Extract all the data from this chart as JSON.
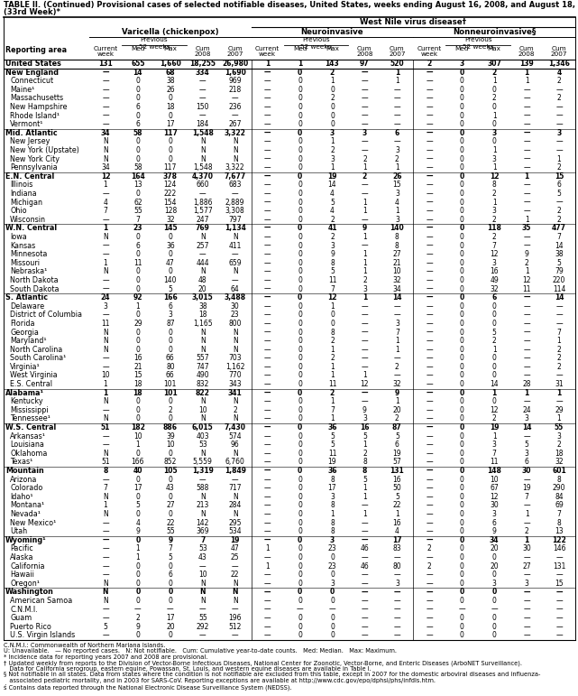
{
  "title_line1": "TABLE II. (Continued) Provisional cases of selected notifiable diseases, United States, weeks ending August 16, 2008, and August 18, 2007",
  "title_line2": "(33rd Week)*",
  "col_group1": "Varicella (chickenpox)",
  "col_group2": "Neuroinvasive",
  "col_group3": "Nonneuroinvasive§",
  "super_group": "West Nile virus disease†",
  "prev52_label": "Previous\n52 weeks",
  "reporting_area_label": "Reporting area",
  "rows": [
    [
      "United States",
      "131",
      "655",
      "1,660",
      "18,255",
      "26,980",
      "1",
      "1",
      "143",
      "97",
      "520",
      "2",
      "3",
      "307",
      "139",
      "1,346"
    ],
    [
      "New England",
      "—",
      "14",
      "68",
      "334",
      "1,690",
      "—",
      "0",
      "2",
      "—",
      "1",
      "—",
      "0",
      "2",
      "1",
      "4"
    ],
    [
      "Connecticut",
      "—",
      "0",
      "38",
      "—",
      "969",
      "—",
      "0",
      "1",
      "—",
      "1",
      "—",
      "0",
      "1",
      "1",
      "2"
    ],
    [
      "Maine¹",
      "—",
      "0",
      "26",
      "—",
      "218",
      "—",
      "0",
      "0",
      "—",
      "—",
      "—",
      "0",
      "0",
      "—",
      "—"
    ],
    [
      "Massachusetts",
      "—",
      "0",
      "0",
      "—",
      "—",
      "—",
      "0",
      "2",
      "—",
      "—",
      "—",
      "0",
      "2",
      "—",
      "2"
    ],
    [
      "New Hampshire",
      "—",
      "6",
      "18",
      "150",
      "236",
      "—",
      "0",
      "0",
      "—",
      "—",
      "—",
      "0",
      "0",
      "—",
      "—"
    ],
    [
      "Rhode Island¹",
      "—",
      "0",
      "0",
      "—",
      "—",
      "—",
      "0",
      "0",
      "—",
      "—",
      "—",
      "0",
      "1",
      "—",
      "—"
    ],
    [
      "Vermont¹",
      "—",
      "6",
      "17",
      "184",
      "267",
      "—",
      "0",
      "0",
      "—",
      "—",
      "—",
      "0",
      "0",
      "—",
      "—"
    ],
    [
      "Mid. Atlantic",
      "34",
      "58",
      "117",
      "1,548",
      "3,322",
      "—",
      "0",
      "3",
      "3",
      "6",
      "—",
      "0",
      "3",
      "—",
      "3"
    ],
    [
      "New Jersey",
      "N",
      "0",
      "0",
      "N",
      "N",
      "—",
      "0",
      "1",
      "—",
      "—",
      "—",
      "0",
      "0",
      "—",
      "—"
    ],
    [
      "New York (Upstate)",
      "N",
      "0",
      "0",
      "N",
      "N",
      "—",
      "0",
      "2",
      "—",
      "3",
      "—",
      "0",
      "1",
      "—",
      "—"
    ],
    [
      "New York City",
      "N",
      "0",
      "0",
      "N",
      "N",
      "—",
      "0",
      "3",
      "2",
      "2",
      "—",
      "0",
      "3",
      "—",
      "1"
    ],
    [
      "Pennsylvania",
      "34",
      "58",
      "117",
      "1,548",
      "3,322",
      "—",
      "0",
      "1",
      "1",
      "1",
      "—",
      "0",
      "1",
      "—",
      "2"
    ],
    [
      "E.N. Central",
      "12",
      "164",
      "378",
      "4,370",
      "7,677",
      "—",
      "0",
      "19",
      "2",
      "26",
      "—",
      "0",
      "12",
      "1",
      "15"
    ],
    [
      "Illinois",
      "1",
      "13",
      "124",
      "660",
      "683",
      "—",
      "0",
      "14",
      "—",
      "15",
      "—",
      "0",
      "8",
      "—",
      "6"
    ],
    [
      "Indiana",
      "—",
      "0",
      "222",
      "—",
      "—",
      "—",
      "0",
      "4",
      "—",
      "3",
      "—",
      "0",
      "2",
      "—",
      "5"
    ],
    [
      "Michigan",
      "4",
      "62",
      "154",
      "1,886",
      "2,889",
      "—",
      "0",
      "5",
      "1",
      "4",
      "—",
      "0",
      "1",
      "—",
      "—"
    ],
    [
      "Ohio",
      "7",
      "55",
      "128",
      "1,577",
      "3,308",
      "—",
      "0",
      "4",
      "1",
      "1",
      "—",
      "0",
      "3",
      "—",
      "2"
    ],
    [
      "Wisconsin",
      "—",
      "7",
      "32",
      "247",
      "797",
      "—",
      "0",
      "2",
      "—",
      "3",
      "—",
      "0",
      "2",
      "1",
      "2"
    ],
    [
      "W.N. Central",
      "1",
      "23",
      "145",
      "769",
      "1,134",
      "—",
      "0",
      "41",
      "9",
      "140",
      "—",
      "0",
      "118",
      "35",
      "477"
    ],
    [
      "Iowa",
      "N",
      "0",
      "0",
      "N",
      "N",
      "—",
      "0",
      "2",
      "1",
      "8",
      "—",
      "0",
      "2",
      "—",
      "7"
    ],
    [
      "Kansas",
      "—",
      "6",
      "36",
      "257",
      "411",
      "—",
      "0",
      "3",
      "—",
      "8",
      "—",
      "0",
      "7",
      "—",
      "14"
    ],
    [
      "Minnesota",
      "—",
      "0",
      "0",
      "—",
      "—",
      "—",
      "0",
      "9",
      "1",
      "27",
      "—",
      "0",
      "12",
      "9",
      "38"
    ],
    [
      "Missouri",
      "1",
      "11",
      "47",
      "444",
      "659",
      "—",
      "0",
      "8",
      "1",
      "21",
      "—",
      "0",
      "3",
      "2",
      "5"
    ],
    [
      "Nebraska¹",
      "N",
      "0",
      "0",
      "N",
      "N",
      "—",
      "0",
      "5",
      "1",
      "10",
      "—",
      "0",
      "16",
      "1",
      "79"
    ],
    [
      "North Dakota",
      "—",
      "0",
      "140",
      "48",
      "—",
      "—",
      "0",
      "11",
      "2",
      "32",
      "—",
      "0",
      "49",
      "12",
      "220"
    ],
    [
      "South Dakota",
      "—",
      "0",
      "5",
      "20",
      "64",
      "—",
      "0",
      "7",
      "3",
      "34",
      "—",
      "0",
      "32",
      "11",
      "114"
    ],
    [
      "S. Atlantic",
      "24",
      "92",
      "166",
      "3,015",
      "3,488",
      "—",
      "0",
      "12",
      "1",
      "14",
      "—",
      "0",
      "6",
      "—",
      "14"
    ],
    [
      "Delaware",
      "3",
      "1",
      "6",
      "38",
      "30",
      "—",
      "0",
      "1",
      "—",
      "—",
      "—",
      "0",
      "0",
      "—",
      "—"
    ],
    [
      "District of Columbia",
      "—",
      "0",
      "3",
      "18",
      "23",
      "—",
      "0",
      "0",
      "—",
      "—",
      "—",
      "0",
      "0",
      "—",
      "—"
    ],
    [
      "Florida",
      "11",
      "29",
      "87",
      "1,165",
      "800",
      "—",
      "0",
      "0",
      "—",
      "3",
      "—",
      "0",
      "0",
      "—",
      "—"
    ],
    [
      "Georgia",
      "N",
      "0",
      "0",
      "N",
      "N",
      "—",
      "0",
      "8",
      "—",
      "7",
      "—",
      "0",
      "5",
      "—",
      "7"
    ],
    [
      "Maryland¹",
      "N",
      "0",
      "0",
      "N",
      "N",
      "—",
      "0",
      "2",
      "—",
      "1",
      "—",
      "0",
      "2",
      "—",
      "1"
    ],
    [
      "North Carolina",
      "N",
      "0",
      "0",
      "N",
      "N",
      "—",
      "0",
      "1",
      "—",
      "1",
      "—",
      "0",
      "1",
      "—",
      "2"
    ],
    [
      "South Carolina¹",
      "—",
      "16",
      "66",
      "557",
      "703",
      "—",
      "0",
      "2",
      "—",
      "—",
      "—",
      "0",
      "0",
      "—",
      "2"
    ],
    [
      "Virginia¹",
      "—",
      "21",
      "80",
      "747",
      "1,162",
      "—",
      "0",
      "1",
      "—",
      "2",
      "—",
      "0",
      "0",
      "—",
      "2"
    ],
    [
      "West Virginia",
      "10",
      "15",
      "66",
      "490",
      "770",
      "—",
      "0",
      "1",
      "1",
      "—",
      "—",
      "0",
      "0",
      "—",
      "—"
    ],
    [
      "E.S. Central",
      "1",
      "18",
      "101",
      "832",
      "343",
      "—",
      "0",
      "11",
      "12",
      "32",
      "—",
      "0",
      "14",
      "28",
      "31"
    ],
    [
      "Alabama¹",
      "1",
      "18",
      "101",
      "822",
      "341",
      "—",
      "0",
      "2",
      "—",
      "9",
      "—",
      "0",
      "1",
      "1",
      "1"
    ],
    [
      "Kentucky",
      "N",
      "0",
      "0",
      "N",
      "N",
      "—",
      "0",
      "1",
      "—",
      "1",
      "—",
      "0",
      "0",
      "—",
      "—"
    ],
    [
      "Mississippi",
      "—",
      "0",
      "2",
      "10",
      "2",
      "—",
      "0",
      "7",
      "9",
      "20",
      "—",
      "0",
      "12",
      "24",
      "29"
    ],
    [
      "Tennessee¹",
      "N",
      "0",
      "0",
      "N",
      "N",
      "—",
      "0",
      "1",
      "3",
      "2",
      "—",
      "0",
      "2",
      "3",
      "1"
    ],
    [
      "W.S. Central",
      "51",
      "182",
      "886",
      "6,015",
      "7,430",
      "—",
      "0",
      "36",
      "16",
      "87",
      "—",
      "0",
      "19",
      "14",
      "55"
    ],
    [
      "Arkansas¹",
      "—",
      "10",
      "39",
      "403",
      "574",
      "—",
      "0",
      "5",
      "5",
      "5",
      "—",
      "0",
      "1",
      "—",
      "3"
    ],
    [
      "Louisiana",
      "—",
      "1",
      "10",
      "53",
      "96",
      "—",
      "0",
      "5",
      "1",
      "6",
      "—",
      "0",
      "3",
      "5",
      "2"
    ],
    [
      "Oklahoma",
      "N",
      "0",
      "0",
      "N",
      "N",
      "—",
      "0",
      "11",
      "2",
      "19",
      "—",
      "0",
      "7",
      "3",
      "18"
    ],
    [
      "Texas¹",
      "51",
      "166",
      "852",
      "5,559",
      "6,760",
      "—",
      "0",
      "19",
      "8",
      "57",
      "—",
      "0",
      "11",
      "6",
      "32"
    ],
    [
      "Mountain",
      "8",
      "40",
      "105",
      "1,319",
      "1,849",
      "—",
      "0",
      "36",
      "8",
      "131",
      "—",
      "0",
      "148",
      "30",
      "601"
    ],
    [
      "Arizona",
      "—",
      "0",
      "0",
      "—",
      "—",
      "—",
      "0",
      "8",
      "5",
      "16",
      "—",
      "0",
      "10",
      "—",
      "8"
    ],
    [
      "Colorado",
      "7",
      "17",
      "43",
      "588",
      "717",
      "—",
      "0",
      "17",
      "1",
      "50",
      "—",
      "0",
      "67",
      "19",
      "290"
    ],
    [
      "Idaho¹",
      "N",
      "0",
      "0",
      "N",
      "N",
      "—",
      "0",
      "3",
      "1",
      "5",
      "—",
      "0",
      "12",
      "7",
      "84"
    ],
    [
      "Montana¹",
      "1",
      "5",
      "27",
      "213",
      "284",
      "—",
      "0",
      "8",
      "—",
      "22",
      "—",
      "0",
      "30",
      "—",
      "69"
    ],
    [
      "Nevada¹",
      "N",
      "0",
      "0",
      "N",
      "N",
      "—",
      "0",
      "1",
      "1",
      "1",
      "—",
      "0",
      "3",
      "1",
      "7"
    ],
    [
      "New Mexico¹",
      "—",
      "4",
      "22",
      "142",
      "295",
      "—",
      "0",
      "8",
      "—",
      "16",
      "—",
      "0",
      "6",
      "—",
      "8"
    ],
    [
      "Utah",
      "—",
      "9",
      "55",
      "369",
      "534",
      "—",
      "0",
      "8",
      "—",
      "4",
      "—",
      "0",
      "9",
      "2",
      "13"
    ],
    [
      "Wyoming¹",
      "—",
      "0",
      "9",
      "7",
      "19",
      "—",
      "0",
      "3",
      "—",
      "17",
      "—",
      "0",
      "34",
      "1",
      "122"
    ],
    [
      "Pacific",
      "—",
      "1",
      "7",
      "53",
      "47",
      "1",
      "0",
      "23",
      "46",
      "83",
      "2",
      "0",
      "20",
      "30",
      "146"
    ],
    [
      "Alaska",
      "—",
      "1",
      "5",
      "43",
      "25",
      "—",
      "0",
      "0",
      "—",
      "—",
      "—",
      "0",
      "0",
      "—",
      "—"
    ],
    [
      "California",
      "—",
      "0",
      "0",
      "—",
      "—",
      "1",
      "0",
      "23",
      "46",
      "80",
      "2",
      "0",
      "20",
      "27",
      "131"
    ],
    [
      "Hawaii",
      "—",
      "0",
      "6",
      "10",
      "22",
      "—",
      "0",
      "0",
      "—",
      "—",
      "—",
      "0",
      "0",
      "—",
      "—"
    ],
    [
      "Oregon¹",
      "N",
      "0",
      "0",
      "N",
      "N",
      "—",
      "0",
      "3",
      "—",
      "3",
      "—",
      "0",
      "3",
      "3",
      "15"
    ],
    [
      "Washington",
      "N",
      "0",
      "0",
      "N",
      "N",
      "—",
      "0",
      "0",
      "—",
      "—",
      "—",
      "0",
      "0",
      "—",
      "—"
    ],
    [
      "American Samoa",
      "N",
      "0",
      "0",
      "N",
      "N",
      "—",
      "0",
      "0",
      "—",
      "—",
      "—",
      "0",
      "0",
      "—",
      "—"
    ],
    [
      "C.N.M.I.",
      "—",
      "—",
      "—",
      "—",
      "—",
      "—",
      "—",
      "—",
      "—",
      "—",
      "—",
      "—",
      "—",
      "—",
      "—"
    ],
    [
      "Guam",
      "—",
      "2",
      "17",
      "55",
      "196",
      "—",
      "0",
      "0",
      "—",
      "—",
      "—",
      "0",
      "0",
      "—",
      "—"
    ],
    [
      "Puerto Rico",
      "5",
      "9",
      "20",
      "292",
      "512",
      "—",
      "0",
      "0",
      "—",
      "—",
      "—",
      "0",
      "0",
      "—",
      "—"
    ],
    [
      "U.S. Virgin Islands",
      "—",
      "0",
      "0",
      "—",
      "—",
      "—",
      "0",
      "0",
      "—",
      "—",
      "—",
      "0",
      "0",
      "—",
      "—"
    ]
  ],
  "section_rows": [
    0,
    1,
    8,
    13,
    19,
    27,
    38,
    42,
    47,
    55,
    61
  ],
  "footnotes": [
    "C.N.M.I.: Commonwealth of Northern Mariana Islands.",
    "U: Unavailable.   — No reported cases.   N: Not notifiable.   Cum: Cumulative year-to-date counts.   Med: Median.   Max: Maximum.",
    "* Incidence data for reporting years 2007 and 2008 are provisional.",
    "† Updated weekly from reports to the Division of Vector-Borne Infectious Diseases, National Center for Zoonotic, Vector-Borne, and Enteric Diseases (ArboNET Surveillance).",
    "   Data for California serogroup, eastern equine, Powassan, St. Louis, and western equine diseases are available in Table I.",
    "§ Not notifiable in all states. Data from states where the condition is not notifiable are excluded from this table, except in 2007 for the domestic arboviral diseases and influenza-",
    "   associated pediatric mortality, and in 2003 for SARS-CoV. Reporting exceptions are available at http://www.cdc.gov/epo/dphsi/phs/infdis.htm.",
    "ś Contains data reported through the National Electronic Disease Surveillance System (NEDSS)."
  ]
}
